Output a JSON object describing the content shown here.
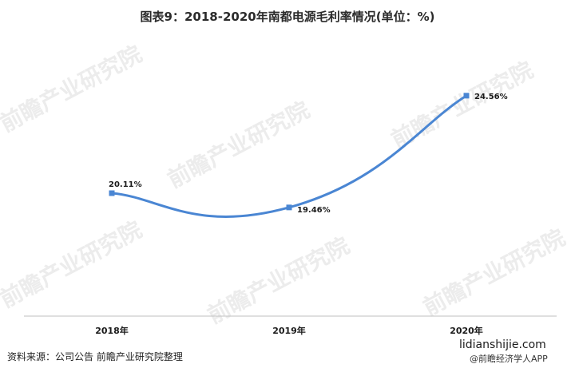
{
  "title": "图表9：2018-2020年南都电源毛利率情况(单位：%)",
  "source": "资料来源：公司公告 前瞻产业研究院整理",
  "site": "lidianshijie.com",
  "app": "@前瞻经济学人APP",
  "watermark": "前瞻产业研究院",
  "colors": {
    "line": "#4a86d3",
    "axis": "#bfbfbf"
  },
  "chart_data": {
    "type": "line",
    "categories": [
      "2018年",
      "2019年",
      "2020年"
    ],
    "values": [
      20.11,
      19.46,
      24.56
    ],
    "data_labels": [
      "20.11%",
      "19.46%",
      "24.56%"
    ],
    "title": "图表9：2018-2020年南都电源毛利率情况(单位：%)",
    "grid": false,
    "smooth": true
  }
}
